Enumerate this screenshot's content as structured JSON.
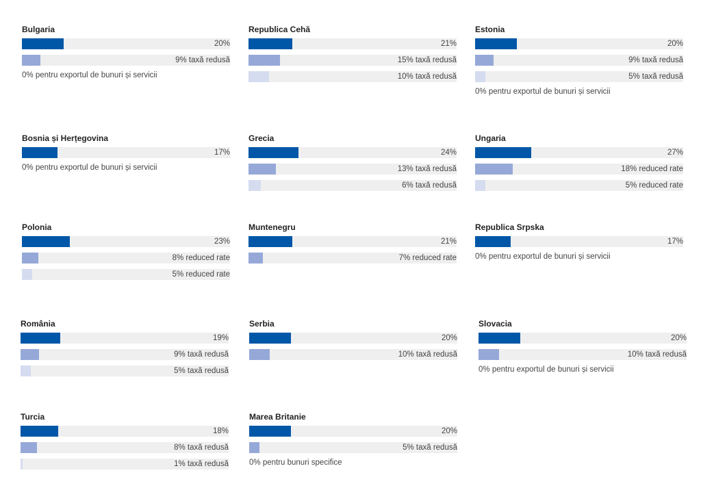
{
  "colors": {
    "standard": "#0057a8",
    "reduced_1": "#95a8d8",
    "reduced_2": "#d5dcf0",
    "track": "#efefef"
  },
  "chart_data": {
    "type": "bar",
    "orientation": "horizontal",
    "unit": "%",
    "max_value": 100,
    "countries": [
      {
        "name": "Bulgaria",
        "bars": [
          {
            "value": 20,
            "label": "20%",
            "tier": "standard"
          },
          {
            "value": 9,
            "label": "9% taxă redusă",
            "tier": "reduced_1"
          }
        ],
        "note": "0% pentru exportul de bunuri și servicii"
      },
      {
        "name": "Republica Cehă",
        "bars": [
          {
            "value": 21,
            "label": "21%",
            "tier": "standard"
          },
          {
            "value": 15,
            "label": "15% taxă redusă",
            "tier": "reduced_1"
          },
          {
            "value": 10,
            "label": "10% taxă redusă",
            "tier": "reduced_2"
          }
        ],
        "note": ""
      },
      {
        "name": "Estonia",
        "bars": [
          {
            "value": 20,
            "label": "20%",
            "tier": "standard"
          },
          {
            "value": 9,
            "label": "9% taxă redusă",
            "tier": "reduced_1"
          },
          {
            "value": 5,
            "label": "5% taxă redusă",
            "tier": "reduced_2"
          }
        ],
        "note": "0% pentru exportul de bunuri și servicii"
      },
      {
        "name": "Bosnia și Herțegovina",
        "bars": [
          {
            "value": 17,
            "label": "17%",
            "tier": "standard"
          }
        ],
        "note": "0% pentru exportul de bunuri și servicii"
      },
      {
        "name": "Grecia",
        "bars": [
          {
            "value": 24,
            "label": "24%",
            "tier": "standard"
          },
          {
            "value": 13,
            "label": "13% taxă redusă",
            "tier": "reduced_1"
          },
          {
            "value": 6,
            "label": "6% taxă redusă",
            "tier": "reduced_2"
          }
        ],
        "note": ""
      },
      {
        "name": "Ungaria",
        "bars": [
          {
            "value": 27,
            "label": "27%",
            "tier": "standard"
          },
          {
            "value": 18,
            "label": "18% reduced rate",
            "tier": "reduced_1"
          },
          {
            "value": 5,
            "label": "5% reduced rate",
            "tier": "reduced_2"
          }
        ],
        "note": ""
      },
      {
        "name": "Polonia",
        "bars": [
          {
            "value": 23,
            "label": "23%",
            "tier": "standard"
          },
          {
            "value": 8,
            "label": "8% reduced rate",
            "tier": "reduced_1"
          },
          {
            "value": 5,
            "label": "5% reduced rate",
            "tier": "reduced_2"
          }
        ],
        "note": ""
      },
      {
        "name": "Muntenegru",
        "bars": [
          {
            "value": 21,
            "label": "21%",
            "tier": "standard"
          },
          {
            "value": 7,
            "label": "7% reduced rate",
            "tier": "reduced_1"
          }
        ],
        "note": ""
      },
      {
        "name": "Republica Srpska",
        "bars": [
          {
            "value": 17,
            "label": "17%",
            "tier": "standard"
          }
        ],
        "note": "0% pentru exportul de bunuri și servicii"
      },
      {
        "name": "România",
        "bars": [
          {
            "value": 19,
            "label": "19%",
            "tier": "standard"
          },
          {
            "value": 9,
            "label": "9% taxă redusă",
            "tier": "reduced_1"
          },
          {
            "value": 5,
            "label": "5% taxă redusă",
            "tier": "reduced_2"
          }
        ],
        "note": ""
      },
      {
        "name": "Serbia",
        "bars": [
          {
            "value": 20,
            "label": "20%",
            "tier": "standard"
          },
          {
            "value": 10,
            "label": "10% taxă redusă",
            "tier": "reduced_1"
          }
        ],
        "note": ""
      },
      {
        "name": "Slovacia",
        "bars": [
          {
            "value": 20,
            "label": "20%",
            "tier": "standard"
          },
          {
            "value": 10,
            "label": "10% taxă redusă",
            "tier": "reduced_1"
          }
        ],
        "note": "0% pentru exportul de bunuri și servicii"
      },
      {
        "name": "Turcia",
        "bars": [
          {
            "value": 18,
            "label": "18%",
            "tier": "standard"
          },
          {
            "value": 8,
            "label": "8% taxă redusă",
            "tier": "reduced_1"
          },
          {
            "value": 1,
            "label": "1% taxă redusă",
            "tier": "reduced_2"
          }
        ],
        "note": ""
      },
      {
        "name": "Marea Britanie",
        "bars": [
          {
            "value": 20,
            "label": "20%",
            "tier": "standard"
          },
          {
            "value": 5,
            "label": "5% taxă redusă",
            "tier": "reduced_1"
          }
        ],
        "note": "0% pentru bunuri specifice"
      }
    ]
  }
}
